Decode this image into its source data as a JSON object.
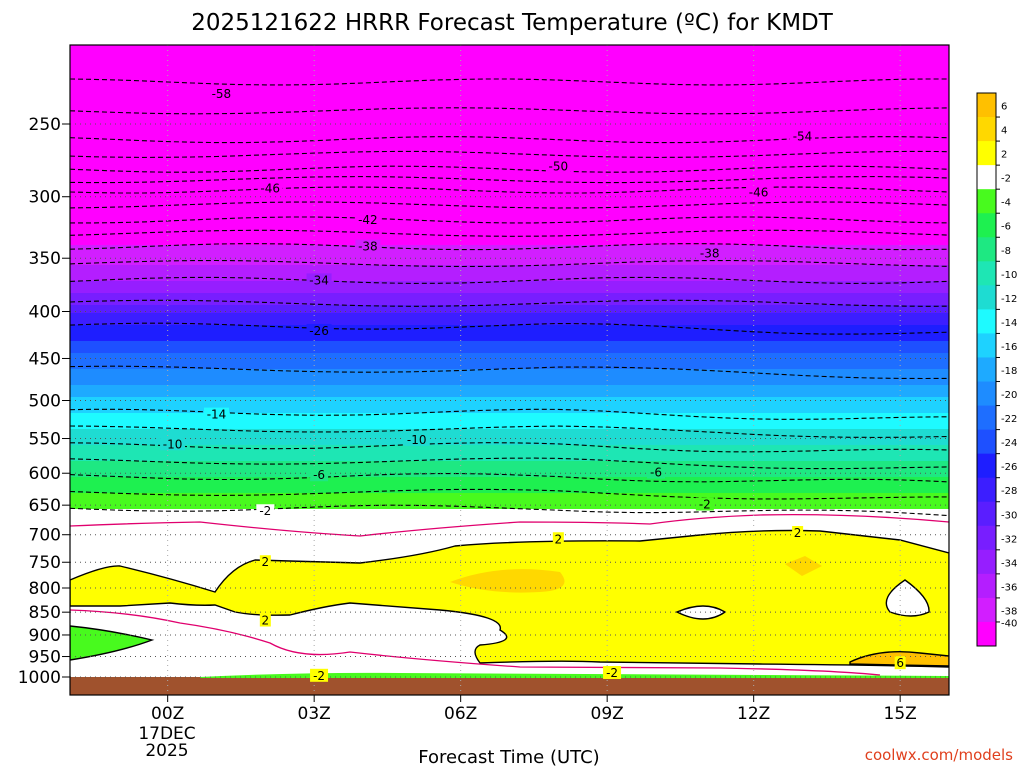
{
  "chart_data": {
    "type": "heatmap",
    "title": "2025121622 HRRR Forecast Temperature (ºC) for KMDT",
    "xlabel": "Forecast Time (UTC)",
    "ylabel": "",
    "credit": "coolwx.com/models",
    "x_range_hours": [
      -2,
      16
    ],
    "x_ticks": [
      {
        "value": 0,
        "label": "00Z"
      },
      {
        "value": 3,
        "label": "03Z"
      },
      {
        "value": 6,
        "label": "06Z"
      },
      {
        "value": 9,
        "label": "09Z"
      },
      {
        "value": 12,
        "label": "12Z"
      },
      {
        "value": 15,
        "label": "15Z"
      }
    ],
    "date_label": [
      "17DEC",
      "2025"
    ],
    "y_range_hpa": [
      1000,
      200
    ],
    "y_ticks": [
      250,
      300,
      350,
      400,
      450,
      500,
      550,
      600,
      650,
      700,
      750,
      800,
      850,
      900,
      950,
      1000
    ],
    "colorbar": {
      "levels": [
        6,
        4,
        2,
        -2,
        -4,
        -6,
        -8,
        -10,
        -12,
        -14,
        -16,
        -18,
        -20,
        -22,
        -24,
        -26,
        -28,
        -30,
        -32,
        -34,
        -36,
        -38,
        -40
      ],
      "colors": [
        "#ffc000",
        "#ffd800",
        "#ffff00",
        "#ffffff",
        "#48fa1e",
        "#1ef050",
        "#1ee882",
        "#1ee6b4",
        "#1edcd2",
        "#1efaff",
        "#1ed2ff",
        "#1eaaff",
        "#1e8cff",
        "#1e6eff",
        "#1e50ff",
        "#1e1eff",
        "#3c1eff",
        "#5a1eff",
        "#781eff",
        "#961eff",
        "#b41eff",
        "#d21eff",
        "#ff00ff"
      ]
    },
    "temperature_profile_hpa": [
      {
        "p": 225,
        "t": -58
      },
      {
        "p": 260,
        "t": -54
      },
      {
        "p": 280,
        "t": -50
      },
      {
        "p": 295,
        "t": -46
      },
      {
        "p": 318,
        "t": -42
      },
      {
        "p": 340,
        "t": -38
      },
      {
        "p": 370,
        "t": -34
      },
      {
        "p": 415,
        "t": -26
      },
      {
        "p": 515,
        "t": -14
      },
      {
        "p": 560,
        "t": -10
      },
      {
        "p": 605,
        "t": -6
      },
      {
        "p": 655,
        "t": -2
      },
      {
        "p": 735,
        "t": 2
      },
      {
        "p": 960,
        "t": 6
      }
    ],
    "contour_labels": [
      {
        "text": "-58",
        "hour": 1.1,
        "p": 232
      },
      {
        "text": "-54",
        "hour": 13.0,
        "p": 258
      },
      {
        "text": "-50",
        "hour": 8.0,
        "p": 278
      },
      {
        "text": "-46",
        "hour": 2.1,
        "p": 294
      },
      {
        "text": "-46",
        "hour": 12.1,
        "p": 297
      },
      {
        "text": "-42",
        "hour": 4.1,
        "p": 318
      },
      {
        "text": "-38",
        "hour": 4.1,
        "p": 340
      },
      {
        "text": "-38",
        "hour": 11.1,
        "p": 346
      },
      {
        "text": "-34",
        "hour": 3.1,
        "p": 370
      },
      {
        "text": "-26",
        "hour": 3.1,
        "p": 420
      },
      {
        "text": "-14",
        "hour": 1.0,
        "p": 518
      },
      {
        "text": "-10",
        "hour": 0.1,
        "p": 558
      },
      {
        "text": "-10",
        "hour": 5.1,
        "p": 552
      },
      {
        "text": "-6",
        "hour": 3.1,
        "p": 603
      },
      {
        "text": "-6",
        "hour": 10.0,
        "p": 599
      },
      {
        "text": "-2",
        "hour": 2.0,
        "p": 660
      },
      {
        "text": "-2",
        "hour": 11.0,
        "p": 649
      },
      {
        "text": "2",
        "hour": 12.9,
        "p": 697
      },
      {
        "text": "2",
        "hour": 8.0,
        "p": 708
      },
      {
        "text": "2",
        "hour": 2.0,
        "p": 750
      },
      {
        "text": "2",
        "hour": 2.0,
        "p": 868
      },
      {
        "text": "-2",
        "hour": 3.1,
        "p": 997
      },
      {
        "text": "-2",
        "hour": 9.1,
        "p": 990
      },
      {
        "text": "6",
        "hour": 15.0,
        "p": 966
      }
    ]
  }
}
